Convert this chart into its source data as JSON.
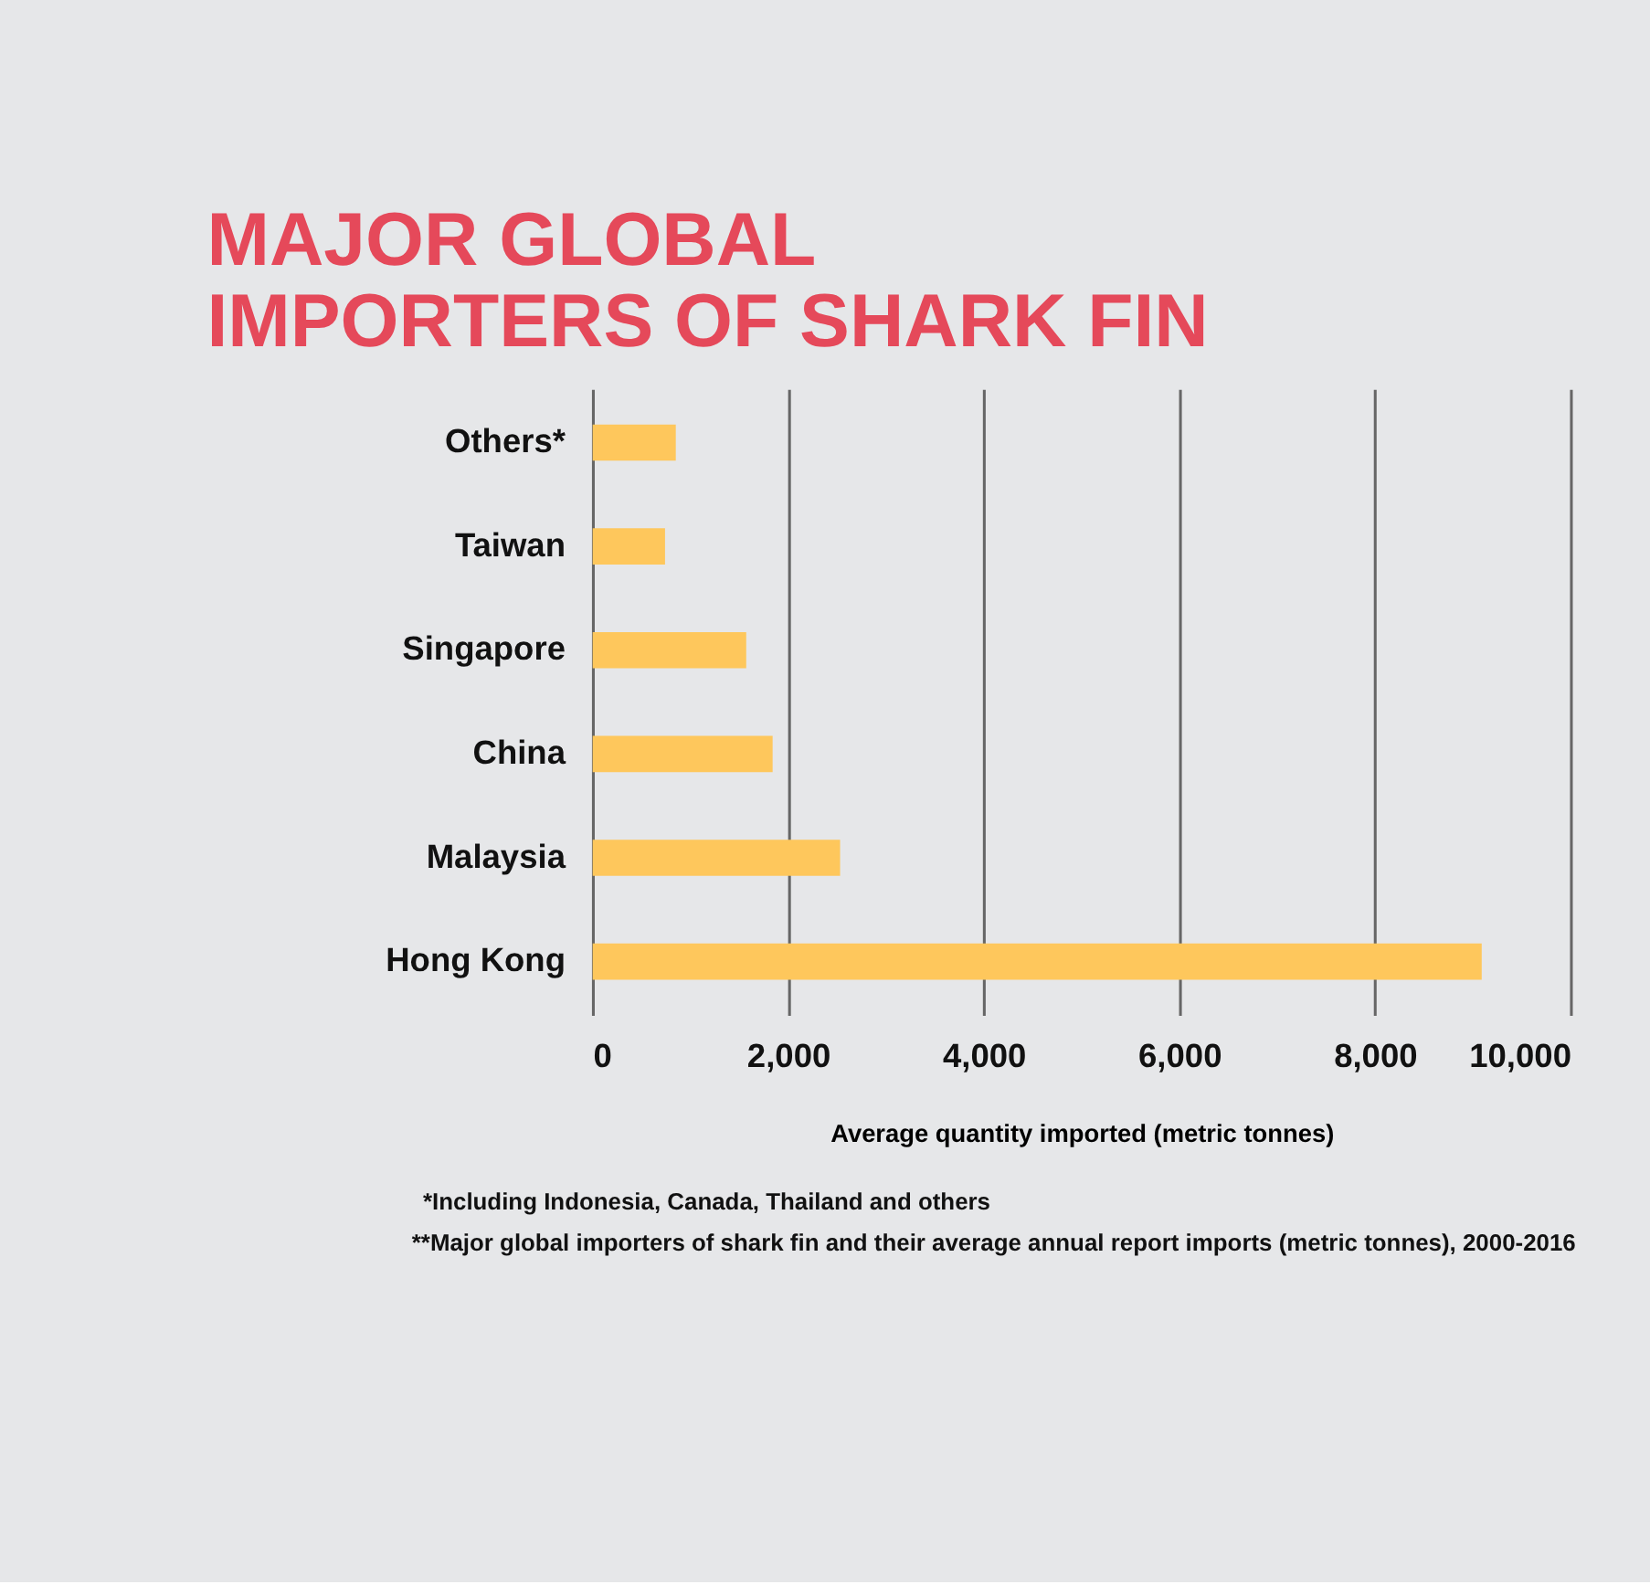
{
  "chart_data": {
    "type": "bar",
    "orientation": "horizontal",
    "title": [
      "MAJOR GLOBAL",
      "IMPORTERS OF SHARK FIN"
    ],
    "categories": [
      "Others*",
      "Taiwan",
      "Singapore",
      "China",
      "Malaysia",
      "Hong Kong"
    ],
    "values": [
      850,
      740,
      1570,
      1840,
      2530,
      9090
    ],
    "color": "#fec75c",
    "xlim": [
      0,
      10000
    ],
    "xticks": [
      {
        "value": 0,
        "label": "0"
      },
      {
        "value": 2000,
        "label": "2,000"
      },
      {
        "value": 4000,
        "label": "4,000"
      },
      {
        "value": 6000,
        "label": "6,000"
      },
      {
        "value": 8000,
        "label": "8,000"
      },
      {
        "value": 10000,
        "label": "10,000"
      }
    ],
    "xlabel": "Average quantity imported (metric tonnes)",
    "grid": "x",
    "annotations": [
      "*Including Indonesia, Canada, Thailand and others",
      "**Major global importers of shark fin and their average annual report imports (metric tonnes), 2000-2016"
    ]
  }
}
